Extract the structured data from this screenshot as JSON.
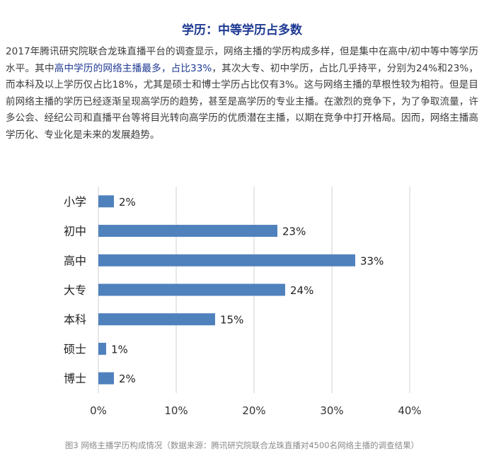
{
  "article": {
    "heading": "学历：中等学历占多数",
    "paragraph": {
      "part1": "2017年腾讯研究院联合龙珠直播平台的调查显示，网络主播的学历构成多样，但是集中在高中/初中等中等学历水平。其中",
      "highlight": "高中学历的网络主播最多，占比33%",
      "part2": "，其次大专、初中学历，占比几乎持平，分别为24%和23%，而本科及以上学历仅占比18%，尤其是硕士和博士学历占比仅有3%。这与网络主播的草根性较为相符。但是目前网络主播的学历已经逐渐呈现高学历的趋势，甚至是高学历的专业主播。在激烈的竞争下，为了争取流量，许多公会、经纪公司和直播平台等将目光转向高学历的优质潜在主播，以期在竞争中打开格局。因而，网络主播高学历化、专业化是未来的发展趋势。"
    }
  },
  "chart_data": {
    "type": "bar",
    "orientation": "horizontal",
    "categories": [
      "小学",
      "初中",
      "高中",
      "大专",
      "本科",
      "硕士",
      "博士"
    ],
    "values": [
      2,
      23,
      33,
      24,
      15,
      1,
      2
    ],
    "value_labels": [
      "2%",
      "23%",
      "33%",
      "24%",
      "15%",
      "1%",
      "2%"
    ],
    "xlim": [
      0,
      40
    ],
    "x_ticks": [
      0,
      10,
      20,
      30,
      40
    ],
    "x_tick_labels": [
      "0%",
      "10%",
      "20%",
      "30%",
      "40%"
    ],
    "grid": true,
    "bar_color": "#4f81bd"
  },
  "caption": "图3 网络主播学历构成情况（数据来源：腾讯研究院联合龙珠直播对4500名网络主播的调查结果）"
}
